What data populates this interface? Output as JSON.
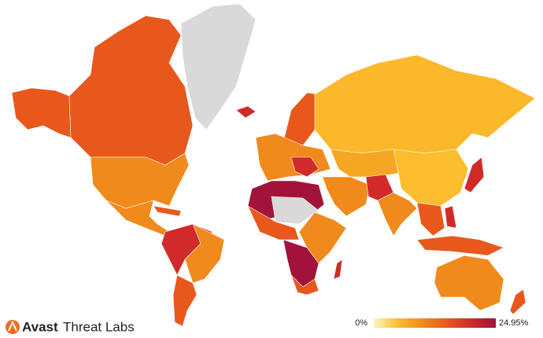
{
  "brand": {
    "name": "Avast",
    "product": "Threat Labs"
  },
  "legend": {
    "min": {
      "value": 0,
      "label": "0%"
    },
    "max": {
      "value": 24.95,
      "label": "24.95%"
    },
    "colors": [
      "#fff3c4",
      "#fbbd2d",
      "#f08a1c",
      "#e8581c",
      "#d12a2a",
      "#a3123a"
    ]
  }
}
